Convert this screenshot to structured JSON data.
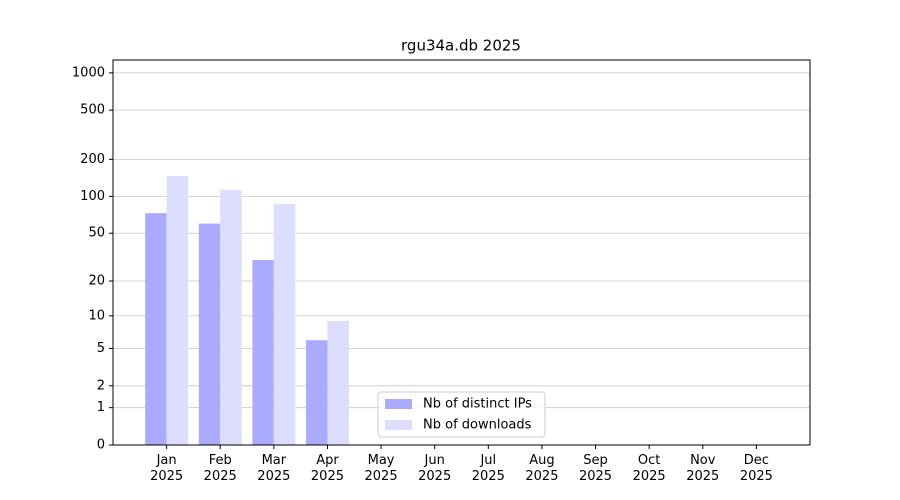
{
  "chart_data": {
    "type": "bar",
    "title": "rgu34a.db 2025",
    "categories": [
      "Jan\n2025",
      "Feb\n2025",
      "Mar\n2025",
      "Apr\n2025",
      "May\n2025",
      "Jun\n2025",
      "Jul\n2025",
      "Aug\n2025",
      "Sep\n2025",
      "Oct\n2025",
      "Nov\n2025",
      "Dec\n2025"
    ],
    "series": [
      {
        "name": "Nb of distinct IPs",
        "color": "#aaaaff",
        "values": [
          73,
          60,
          30,
          6,
          0,
          0,
          0,
          0,
          0,
          0,
          0,
          0
        ]
      },
      {
        "name": "Nb of downloads",
        "color": "#ddddff",
        "values": [
          146,
          113,
          87,
          9,
          0,
          0,
          0,
          0,
          0,
          0,
          0,
          0
        ]
      }
    ],
    "yscale": "log1p",
    "ylim": [
      0,
      1270
    ],
    "yticks": [
      0,
      1,
      2,
      5,
      10,
      20,
      50,
      100,
      200,
      500,
      1000
    ],
    "grid": true,
    "legend": "lower center"
  }
}
